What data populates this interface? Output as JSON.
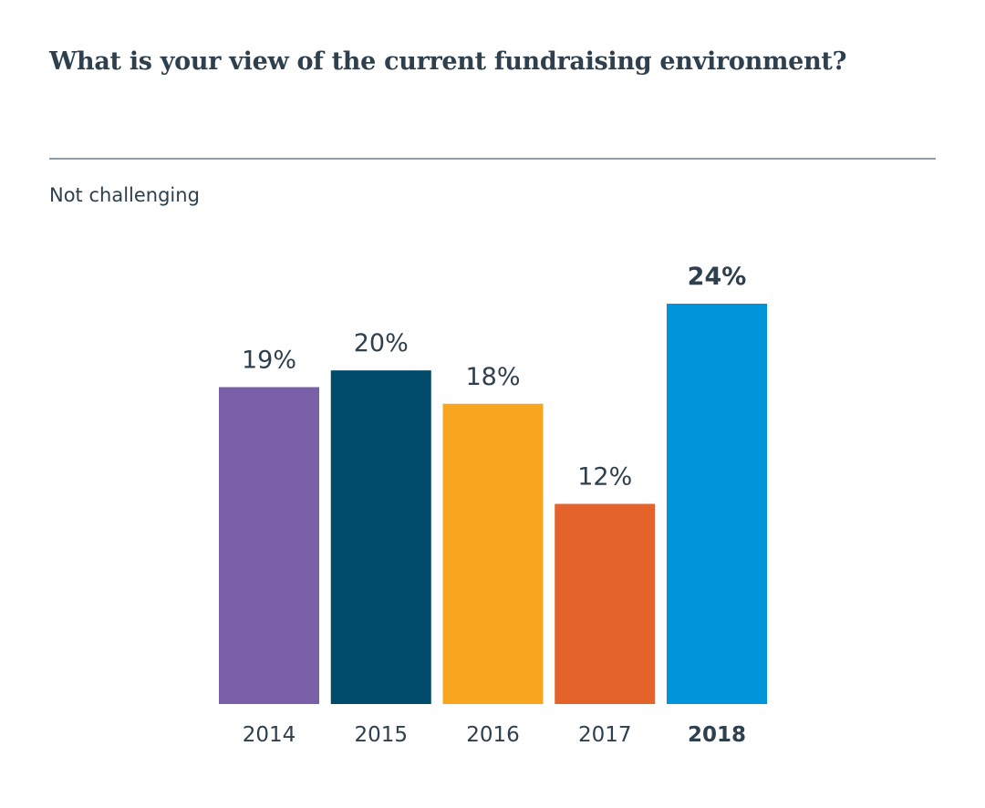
{
  "title": "What is your view of the current fundraising environment?",
  "subtitle": "Not challenging",
  "chart_data": {
    "type": "bar",
    "title": "What is your view of the current fundraising environment?",
    "subtitle": "Not challenging",
    "categories": [
      "2014",
      "2015",
      "2016",
      "2017",
      "2018"
    ],
    "values": [
      19,
      20,
      18,
      12,
      24
    ],
    "data_labels": [
      "19%",
      "20%",
      "18%",
      "12%",
      "24%"
    ],
    "unit": "%",
    "colors": [
      "#7a60a8",
      "#004a6a",
      "#f8a51f",
      "#e4632a",
      "#0095db"
    ],
    "highlighted": "2018",
    "xlabel": "",
    "ylabel": "",
    "ylim": [
      0,
      24
    ],
    "grid": false,
    "legend": "none"
  }
}
